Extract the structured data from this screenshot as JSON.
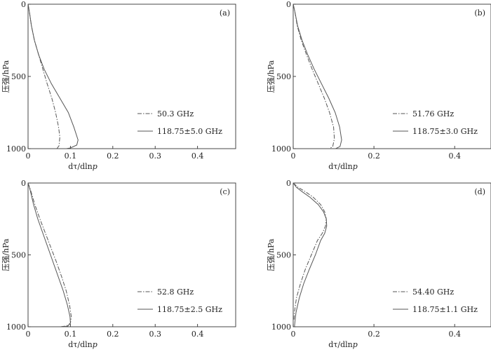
{
  "chart_data": [
    {
      "type": "line",
      "panel_label": "(a)",
      "xlabel_main": "dτ/dln",
      "xlabel_var": "p",
      "ylabel": "压强/hPa",
      "xlim": [
        0,
        0.5
      ],
      "ylim": [
        1000,
        0
      ],
      "xticks": [
        0,
        0.1,
        0.2,
        0.3,
        0.4
      ],
      "xtick_labels": [
        "0",
        "0.1",
        "0.2",
        "0.3",
        "0.4"
      ],
      "yticks": [
        0,
        500,
        1000
      ],
      "ytick_labels": [
        "0",
        "500",
        "1000"
      ],
      "legend_position": "bottom-right",
      "series": [
        {
          "name": "50.3 GHz",
          "style": "dashdot",
          "x": [
            0,
            0.003,
            0.008,
            0.015,
            0.025,
            0.035,
            0.045,
            0.056,
            0.065,
            0.072,
            0.075,
            0.073,
            0.068
          ],
          "y": [
            0,
            50,
            150,
            250,
            350,
            450,
            550,
            650,
            750,
            850,
            920,
            980,
            1000
          ]
        },
        {
          "name": "118.75±5.0 GHz",
          "style": "solid",
          "x": [
            0,
            0.003,
            0.008,
            0.015,
            0.025,
            0.038,
            0.055,
            0.075,
            0.095,
            0.108,
            0.118,
            0.115,
            0.1,
            0.09
          ],
          "y": [
            0,
            50,
            150,
            250,
            350,
            450,
            550,
            650,
            750,
            850,
            940,
            975,
            995,
            1000
          ]
        }
      ]
    },
    {
      "type": "line",
      "panel_label": "(b)",
      "xlabel_main": "dτ/dln",
      "xlabel_var": "p",
      "ylabel": "压强/hPa",
      "xlim": [
        0,
        0.5
      ],
      "ylim": [
        1000,
        0
      ],
      "xticks": [
        0,
        0.2,
        0.4
      ],
      "xtick_labels": [
        "0",
        "0.2",
        "0.4"
      ],
      "yticks": [
        0,
        500,
        1000
      ],
      "ytick_labels": [
        "0",
        "500",
        "1000"
      ],
      "legend_position": "bottom-right",
      "series": [
        {
          "name": "51.76 GHz",
          "style": "dashdot",
          "x": [
            0,
            0.004,
            0.01,
            0.02,
            0.033,
            0.047,
            0.062,
            0.077,
            0.09,
            0.1,
            0.102,
            0.098,
            0.09
          ],
          "y": [
            0,
            50,
            150,
            250,
            350,
            450,
            550,
            650,
            750,
            850,
            930,
            985,
            1000
          ]
        },
        {
          "name": "118.75±3.0 GHz",
          "style": "solid",
          "x": [
            0,
            0.004,
            0.011,
            0.022,
            0.036,
            0.052,
            0.07,
            0.088,
            0.104,
            0.115,
            0.12,
            0.116,
            0.105
          ],
          "y": [
            0,
            50,
            150,
            250,
            350,
            450,
            550,
            650,
            750,
            850,
            940,
            985,
            1000
          ]
        }
      ]
    },
    {
      "type": "line",
      "panel_label": "(c)",
      "xlabel_main": "dτ/dln",
      "xlabel_var": "p",
      "ylabel": "压强/hPa",
      "xlim": [
        0,
        0.5
      ],
      "ylim": [
        1000,
        0
      ],
      "xticks": [
        0,
        0.1,
        0.2,
        0.3,
        0.4
      ],
      "xtick_labels": [
        "0",
        "0.1",
        "0.2",
        "0.3",
        "0.4"
      ],
      "yticks": [
        0,
        500,
        1000
      ],
      "ytick_labels": [
        "0",
        "500",
        "1000"
      ],
      "legend_position": "bottom-right",
      "series": [
        {
          "name": "52.8 GHz",
          "style": "dashdot",
          "x": [
            0,
            0.006,
            0.016,
            0.028,
            0.041,
            0.054,
            0.067,
            0.079,
            0.09,
            0.098,
            0.102,
            0.1,
            0.09,
            0.075
          ],
          "y": [
            0,
            50,
            150,
            250,
            350,
            450,
            550,
            650,
            750,
            850,
            930,
            975,
            995,
            1000
          ]
        },
        {
          "name": "118.75±2.5 GHz",
          "style": "solid",
          "x": [
            0,
            0.005,
            0.013,
            0.023,
            0.035,
            0.047,
            0.059,
            0.071,
            0.083,
            0.093,
            0.099,
            0.1,
            0.094,
            0.085
          ],
          "y": [
            0,
            50,
            150,
            250,
            350,
            450,
            550,
            650,
            750,
            850,
            930,
            975,
            995,
            1000
          ]
        }
      ]
    },
    {
      "type": "line",
      "panel_label": "(d)",
      "xlabel_main": "dτ/dln",
      "xlabel_var": "p",
      "ylabel": "压强/hPa",
      "xlim": [
        0,
        0.5
      ],
      "ylim": [
        1000,
        0
      ],
      "xticks": [
        0,
        0.2,
        0.4
      ],
      "xtick_labels": [
        "0",
        "0.2",
        "0.4"
      ],
      "yticks": [
        0,
        500,
        1000
      ],
      "ytick_labels": [
        "0",
        "500",
        "1000"
      ],
      "legend_position": "bottom-right",
      "series": [
        {
          "name": "54.40 GHz",
          "style": "dashdot",
          "x": [
            0,
            0.012,
            0.03,
            0.05,
            0.068,
            0.078,
            0.082,
            0.08,
            0.072,
            0.06,
            0.045,
            0.03,
            0.018,
            0.008,
            0.003,
            0.002
          ],
          "y": [
            0,
            30,
            60,
            100,
            150,
            200,
            250,
            300,
            350,
            400,
            500,
            600,
            700,
            800,
            900,
            950
          ]
        },
        {
          "name": "118.75±1.1 GHz",
          "style": "solid",
          "x": [
            0,
            0.008,
            0.022,
            0.042,
            0.062,
            0.075,
            0.082,
            0.083,
            0.078,
            0.068,
            0.055,
            0.04,
            0.026,
            0.015,
            0.007,
            0.003
          ],
          "y": [
            0,
            30,
            60,
            100,
            150,
            200,
            250,
            300,
            350,
            400,
            500,
            600,
            700,
            800,
            900,
            1000
          ]
        }
      ]
    }
  ]
}
